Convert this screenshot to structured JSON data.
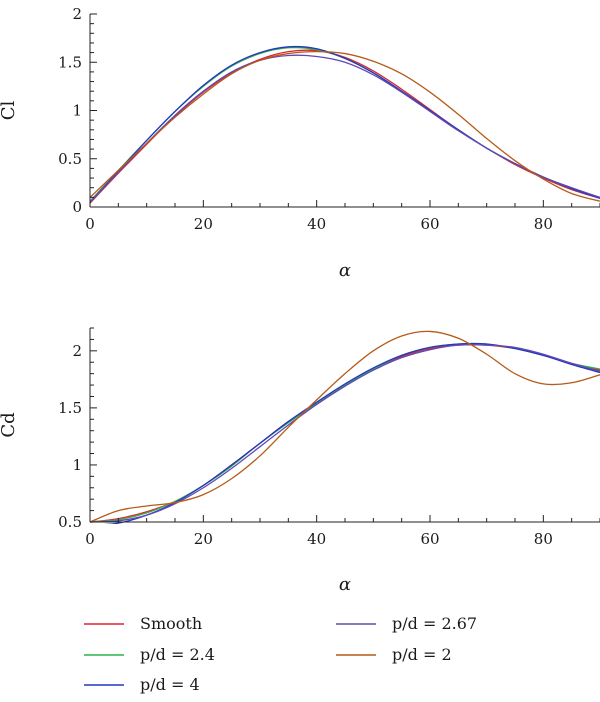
{
  "chart_data": [
    {
      "type": "line",
      "xlabel": "α",
      "ylabel": "Cl",
      "xlim": [
        0,
        90
      ],
      "ylim": [
        0,
        2
      ],
      "xticks": [
        0,
        20,
        40,
        60,
        80
      ],
      "yticks": [
        0,
        0.5,
        1,
        1.5,
        2
      ],
      "ytick_labels": [
        "0",
        "0.5",
        "1",
        "1.5",
        "2"
      ],
      "grid": false,
      "x": [
        0,
        5,
        10,
        15,
        20,
        25,
        30,
        35,
        40,
        45,
        50,
        55,
        60,
        65,
        70,
        75,
        80,
        85,
        90
      ],
      "series": [
        {
          "name": "Smooth",
          "color": "#e0242c",
          "values": [
            0.04,
            0.35,
            0.65,
            0.94,
            1.19,
            1.39,
            1.53,
            1.61,
            1.62,
            1.55,
            1.41,
            1.22,
            1.01,
            0.8,
            0.61,
            0.44,
            0.3,
            0.18,
            0.09
          ]
        },
        {
          "name": "p/d = 2.4",
          "color": "#2db34a",
          "values": [
            0.06,
            0.38,
            0.69,
            0.99,
            1.25,
            1.46,
            1.59,
            1.65,
            1.63,
            1.54,
            1.39,
            1.2,
            1.0,
            0.8,
            0.61,
            0.45,
            0.31,
            0.19,
            0.09
          ]
        },
        {
          "name": "p/d = 4",
          "color": "#2437c2",
          "values": [
            0.05,
            0.37,
            0.69,
            0.99,
            1.26,
            1.47,
            1.6,
            1.66,
            1.64,
            1.54,
            1.39,
            1.2,
            1.0,
            0.8,
            0.61,
            0.45,
            0.31,
            0.19,
            0.09
          ]
        },
        {
          "name": "p/d = 2.67",
          "color": "#6248b5",
          "values": [
            0.05,
            0.36,
            0.66,
            0.95,
            1.2,
            1.4,
            1.52,
            1.57,
            1.56,
            1.5,
            1.37,
            1.19,
            0.99,
            0.79,
            0.61,
            0.45,
            0.31,
            0.2,
            0.1
          ]
        },
        {
          "name": "p/d = 2",
          "color": "#b55a1a",
          "values": [
            0.1,
            0.38,
            0.66,
            0.93,
            1.17,
            1.38,
            1.52,
            1.59,
            1.61,
            1.59,
            1.51,
            1.38,
            1.19,
            0.96,
            0.71,
            0.48,
            0.29,
            0.14,
            0.06
          ]
        }
      ]
    },
    {
      "type": "line",
      "xlabel": "α",
      "ylabel": "Cd",
      "xlim": [
        0,
        90
      ],
      "ylim": [
        0.5,
        2.2
      ],
      "xticks": [
        0,
        20,
        40,
        60,
        80
      ],
      "yticks": [
        0.5,
        1,
        1.5,
        2
      ],
      "ytick_labels": [
        "0.5",
        "1",
        "1.5",
        "2"
      ],
      "grid": false,
      "x": [
        0,
        5,
        10,
        15,
        20,
        25,
        30,
        35,
        40,
        45,
        50,
        55,
        60,
        65,
        70,
        75,
        80,
        85,
        90
      ],
      "series": [
        {
          "name": "Smooth",
          "color": "#e0242c",
          "values": [
            0.5,
            0.53,
            0.59,
            0.68,
            0.82,
            1.0,
            1.19,
            1.38,
            1.54,
            1.7,
            1.84,
            1.95,
            2.02,
            2.05,
            2.05,
            2.02,
            1.96,
            1.89,
            1.83
          ]
        },
        {
          "name": "p/d = 2.4",
          "color": "#2db34a",
          "values": [
            0.5,
            0.52,
            0.58,
            0.68,
            0.82,
            0.99,
            1.19,
            1.37,
            1.54,
            1.7,
            1.84,
            1.96,
            2.03,
            2.06,
            2.06,
            2.02,
            1.96,
            1.89,
            1.84
          ]
        },
        {
          "name": "p/d = 4",
          "color": "#2437c2",
          "values": [
            0.47,
            0.49,
            0.56,
            0.67,
            0.82,
            1.0,
            1.19,
            1.38,
            1.55,
            1.71,
            1.85,
            1.96,
            2.03,
            2.06,
            2.06,
            2.02,
            1.96,
            1.88,
            1.81
          ]
        },
        {
          "name": "p/d = 2.67",
          "color": "#6248b5",
          "values": [
            0.5,
            0.51,
            0.56,
            0.66,
            0.8,
            0.97,
            1.16,
            1.35,
            1.53,
            1.69,
            1.83,
            1.94,
            2.01,
            2.05,
            2.05,
            2.03,
            1.97,
            1.89,
            1.82
          ]
        },
        {
          "name": "p/d = 2",
          "color": "#b55a1a",
          "values": [
            0.5,
            0.6,
            0.64,
            0.67,
            0.74,
            0.88,
            1.08,
            1.33,
            1.57,
            1.8,
            2.0,
            2.13,
            2.17,
            2.11,
            1.97,
            1.8,
            1.71,
            1.72,
            1.79
          ]
        }
      ]
    }
  ],
  "legend": [
    {
      "label": "Smooth",
      "color": "#e0242c"
    },
    {
      "label": "p/d = 2.67",
      "color": "#6248b5"
    },
    {
      "label": "p/d = 2.4",
      "color": "#2db34a"
    },
    {
      "label": "p/d = 2",
      "color": "#b55a1a"
    },
    {
      "label": "p/d = 4",
      "color": "#2437c2"
    }
  ]
}
